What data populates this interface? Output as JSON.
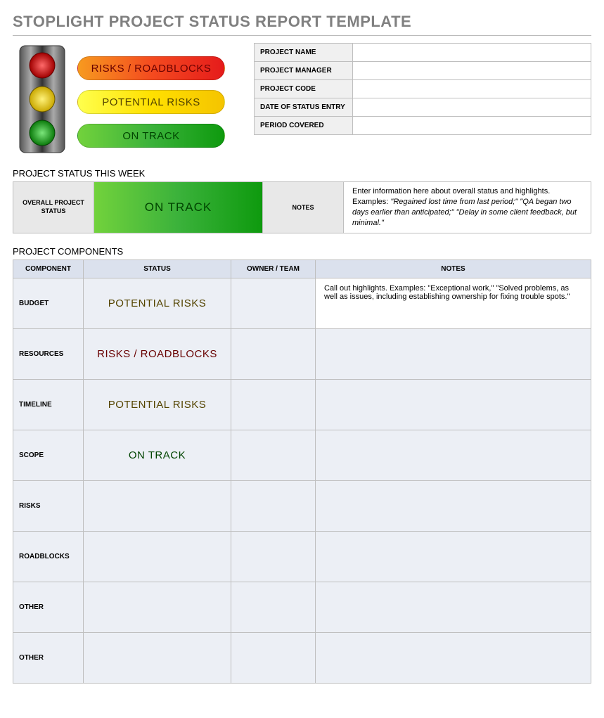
{
  "title": "STOPLIGHT PROJECT STATUS REPORT TEMPLATE",
  "colors": {
    "title_color": "#808080",
    "border": "#bfbfbf",
    "header_bg": "#dbe1ed",
    "cell_bg": "#eceff5",
    "meta_key_bg": "#f0f0f0",
    "red_grad": [
      "#f79a1f",
      "#f44b1f",
      "#e51b1b"
    ],
    "yellow_grad": [
      "#ffff4d",
      "#ffe000",
      "#f5c400"
    ],
    "green_grad": [
      "#72d23c",
      "#3bb23b",
      "#0e9a0e"
    ],
    "red_text": "#680000",
    "yellow_text": "#544400",
    "green_text": "#004400",
    "stoplight_red": "#d40000",
    "stoplight_yellow": "#f0d000",
    "stoplight_green": "#2bb82b"
  },
  "legend": [
    {
      "label": "RISKS / ROADBLOCKS",
      "class": "legend-red"
    },
    {
      "label": "POTENTIAL RISKS",
      "class": "legend-yellow"
    },
    {
      "label": "ON TRACK",
      "class": "legend-green"
    }
  ],
  "meta_fields": [
    {
      "key": "PROJECT NAME",
      "value": ""
    },
    {
      "key": "PROJECT MANAGER",
      "value": ""
    },
    {
      "key": "PROJECT CODE",
      "value": ""
    },
    {
      "key": "DATE OF STATUS ENTRY",
      "value": ""
    },
    {
      "key": "PERIOD COVERED",
      "value": ""
    }
  ],
  "status_week": {
    "section_label": "PROJECT STATUS THIS WEEK",
    "overall_label": "OVERALL PROJECT STATUS",
    "status_text": "ON TRACK",
    "status_class": "bg-green",
    "notes_label": "NOTES",
    "notes_text": "Enter information here about overall status and highlights. Examples: \"Regained lost time from last period;\" \"QA began two days earlier than anticipated;\" \"Delay in some client feedback, but minimal.\""
  },
  "components": {
    "section_label": "PROJECT COMPONENTS",
    "headers": {
      "component": "COMPONENT",
      "status": "STATUS",
      "owner": "OWNER / TEAM",
      "notes": "NOTES"
    },
    "rows": [
      {
        "name": "BUDGET",
        "status": "POTENTIAL RISKS",
        "status_class": "bg-yellow",
        "owner": "",
        "notes": "Call out highlights. Examples: \"Exceptional work,\" \"Solved problems, as well as issues, including establishing ownership for fixing trouble spots.\"",
        "notes_filled": true
      },
      {
        "name": "RESOURCES",
        "status": "RISKS / ROADBLOCKS",
        "status_class": "bg-red",
        "owner": "",
        "notes": "",
        "notes_filled": false
      },
      {
        "name": "TIMELINE",
        "status": "POTENTIAL RISKS",
        "status_class": "bg-yellow",
        "owner": "",
        "notes": "",
        "notes_filled": false
      },
      {
        "name": "SCOPE",
        "status": "ON TRACK",
        "status_class": "bg-green",
        "owner": "",
        "notes": "",
        "notes_filled": false
      },
      {
        "name": "RISKS",
        "status": "",
        "status_class": "bg-none",
        "owner": "",
        "notes": "",
        "notes_filled": false
      },
      {
        "name": "ROADBLOCKS",
        "status": "",
        "status_class": "bg-none",
        "owner": "",
        "notes": "",
        "notes_filled": false
      },
      {
        "name": "OTHER",
        "status": "",
        "status_class": "bg-none",
        "owner": "",
        "notes": "",
        "notes_filled": false
      },
      {
        "name": "OTHER",
        "status": "",
        "status_class": "bg-none",
        "owner": "",
        "notes": "",
        "notes_filled": false
      }
    ]
  }
}
